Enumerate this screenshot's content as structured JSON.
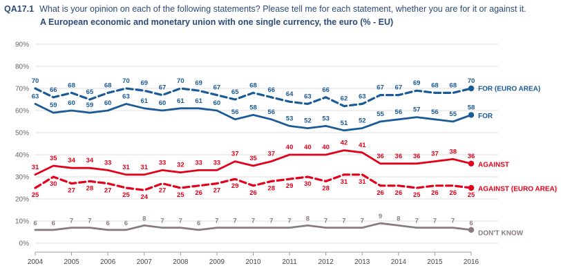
{
  "header": {
    "question_code": "QA17.1",
    "question": "What is your opinion on each of the following statements? Please tell me for each statement, whether you are for it or against it.",
    "subtitle": "A European economic and monetary union with one single currency, the euro (% - EU)"
  },
  "chart_data": {
    "type": "line",
    "title": "A European economic and monetary union with one single currency, the euro (% - EU)",
    "ylim": [
      0,
      90
    ],
    "yticks": [
      "0%",
      "10%",
      "20%",
      "30%",
      "40%",
      "50%",
      "60%",
      "70%",
      "80%",
      "90%"
    ],
    "x_tick_labels": [
      "2004",
      "2005",
      "2006",
      "2007",
      "2008",
      "2009",
      "2010",
      "2011",
      "2012",
      "2013",
      "2014",
      "2015",
      "2016"
    ],
    "grid": true,
    "series": [
      {
        "name": "FOR (EURO AREA)",
        "color": "#1a5a96",
        "dashed": true,
        "values": [
          70,
          66,
          68,
          65,
          68,
          70,
          69,
          67,
          70,
          69,
          67,
          65,
          68,
          66,
          64,
          63,
          66,
          62,
          63,
          67,
          67,
          69,
          68,
          68,
          70
        ]
      },
      {
        "name": "FOR",
        "color": "#1a5a96",
        "dashed": false,
        "values": [
          63,
          59,
          60,
          59,
          60,
          63,
          61,
          60,
          61,
          61,
          60,
          56,
          58,
          56,
          53,
          52,
          53,
          51,
          52,
          55,
          56,
          57,
          56,
          55,
          58
        ]
      },
      {
        "name": "AGAINST",
        "color": "#e2001a",
        "dashed": false,
        "values": [
          31,
          35,
          34,
          34,
          33,
          31,
          31,
          33,
          32,
          33,
          33,
          37,
          35,
          37,
          40,
          40,
          40,
          42,
          41,
          36,
          36,
          36,
          37,
          38,
          36
        ]
      },
      {
        "name": "AGAINST (EURO AREA)",
        "color": "#e2001a",
        "dashed": true,
        "values": [
          25,
          30,
          27,
          28,
          27,
          25,
          24,
          27,
          25,
          26,
          27,
          29,
          26,
          28,
          29,
          30,
          28,
          31,
          31,
          26,
          26,
          25,
          26,
          26,
          25
        ]
      },
      {
        "name": "DON'T KNOW",
        "color": "#8c7b7e",
        "dashed": false,
        "values": [
          6,
          6,
          7,
          7,
          6,
          6,
          8,
          7,
          7,
          6,
          7,
          7,
          7,
          7,
          7,
          8,
          7,
          7,
          7,
          9,
          8,
          7,
          7,
          7,
          6
        ]
      }
    ]
  }
}
